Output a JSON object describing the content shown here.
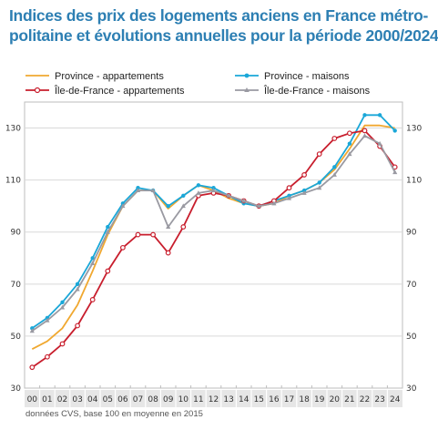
{
  "title_lines": [
    "Indices des prix des logements anciens en France métro-",
    "politaine et évolutions annuelles pour la période 2000/2024"
  ],
  "footnote": "données CVS, base 100 en moyenne en 2015",
  "chart_data": {
    "type": "line",
    "x": [
      "00",
      "01",
      "02",
      "03",
      "04",
      "05",
      "06",
      "07",
      "08",
      "09",
      "10",
      "11",
      "12",
      "13",
      "14",
      "15",
      "16",
      "17",
      "18",
      "19",
      "20",
      "21",
      "22",
      "23",
      "24"
    ],
    "x_values": [
      2000,
      2001,
      2002,
      2003,
      2004,
      2005,
      2006,
      2007,
      2008,
      2009,
      2010,
      2011,
      2012,
      2013,
      2014,
      2015,
      2016,
      2017,
      2018,
      2019,
      2020,
      2021,
      2022,
      2023,
      2024
    ],
    "xlim": [
      2000,
      2025
    ],
    "ylim": [
      30,
      140
    ],
    "yticks_left": [
      30,
      50,
      70,
      90,
      110,
      130
    ],
    "yticks_right": [
      30,
      50,
      70,
      90,
      110,
      130
    ],
    "grid": true,
    "legend_position": "top",
    "series": [
      {
        "name": "Province - appartements",
        "color": "#f0a830",
        "marker": "none",
        "values": [
          45,
          48,
          53,
          62,
          75,
          89,
          100,
          106,
          106,
          99,
          104,
          108,
          106,
          103,
          101,
          100,
          101,
          104,
          106,
          109,
          114,
          122,
          131,
          131,
          130
        ]
      },
      {
        "name": "Province - maisons",
        "color": "#1aa7d8",
        "marker": "dot",
        "values": [
          53,
          57,
          63,
          70,
          80,
          92,
          101,
          107,
          106,
          100,
          104,
          108,
          107,
          104,
          101,
          100,
          102,
          104,
          106,
          109,
          115,
          124,
          135,
          135,
          129
        ]
      },
      {
        "name": "Île-de-France - appartements",
        "color": "#c81e2d",
        "marker": "circle",
        "values": [
          38,
          42,
          47,
          54,
          64,
          75,
          84,
          89,
          89,
          82,
          92,
          104,
          105,
          104,
          102,
          100,
          102,
          107,
          112,
          120,
          126,
          128,
          129,
          123,
          115
        ]
      },
      {
        "name": "Île-de-France - maisons",
        "color": "#9a9aa2",
        "marker": "triangle",
        "values": [
          52,
          56,
          61,
          68,
          78,
          90,
          100,
          106,
          106,
          92,
          100,
          105,
          106,
          104,
          102,
          100,
          101,
          103,
          105,
          107,
          112,
          120,
          127,
          124,
          113
        ]
      }
    ]
  }
}
